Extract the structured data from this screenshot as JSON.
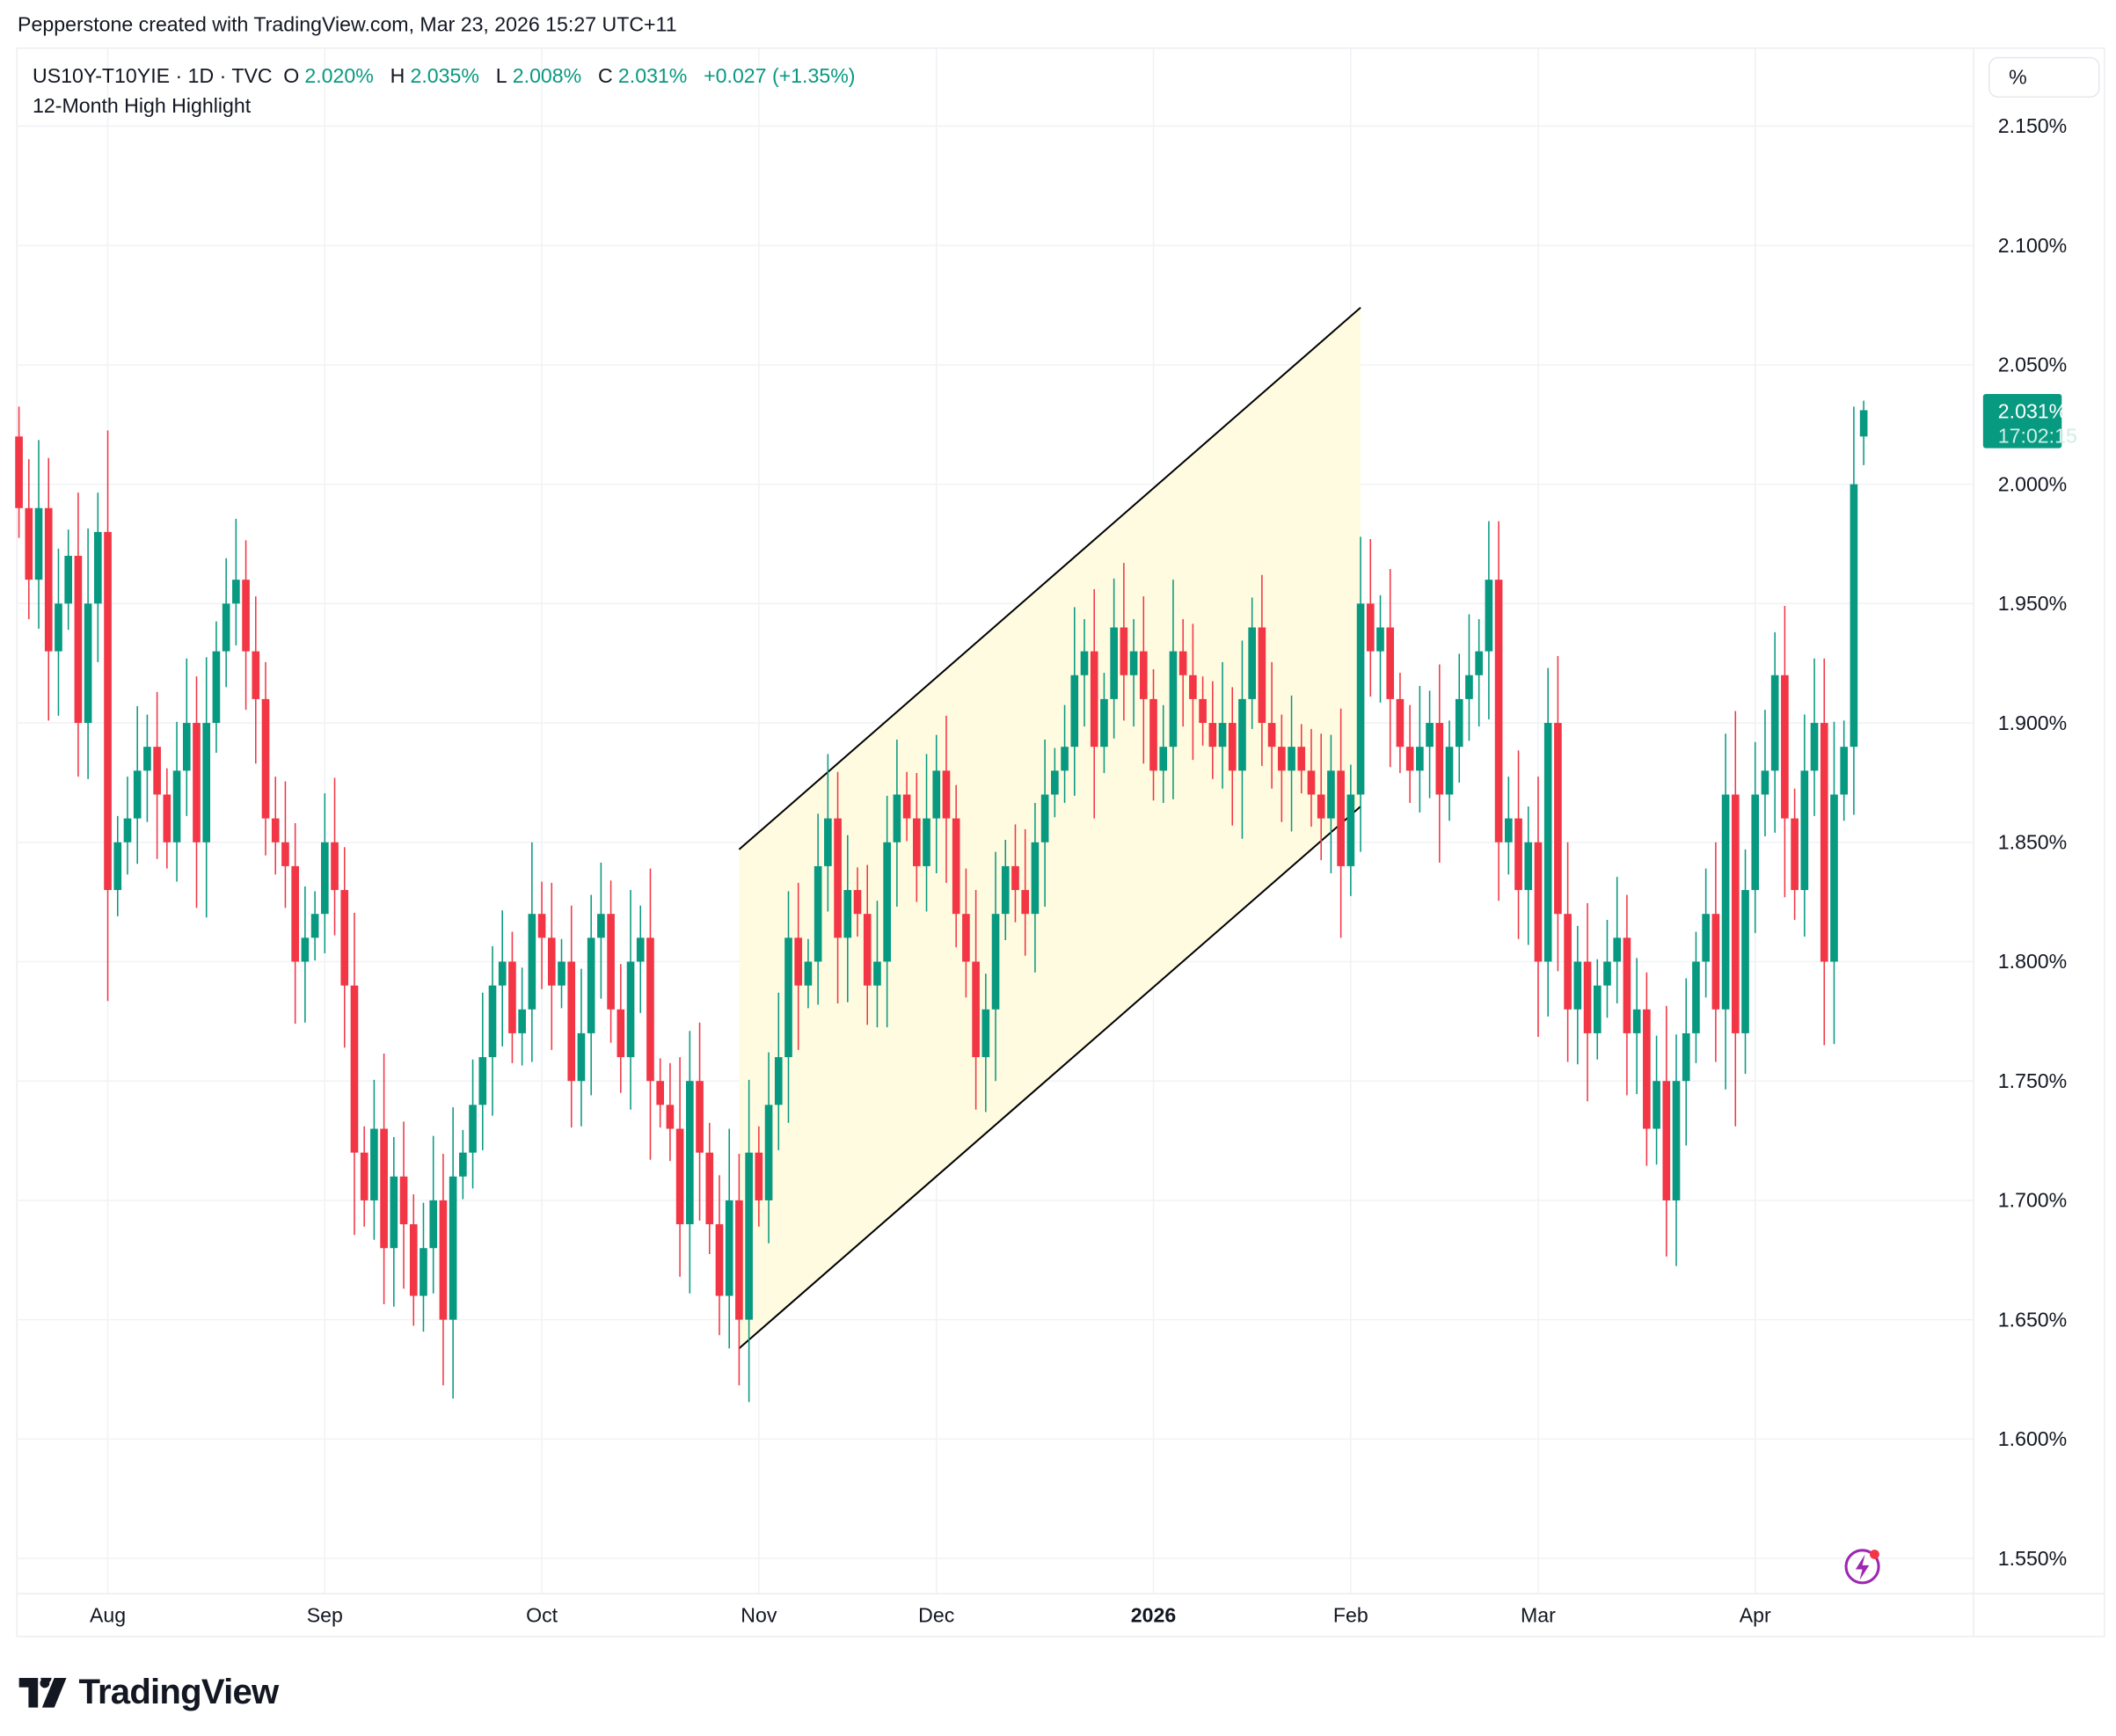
{
  "credit": "Pepperstone created with TradingView.com, Mar 23, 2026 15:27 UTC+11",
  "legend": {
    "symbol": "US10Y-T10YIE · 1D · TVC",
    "o_label": "O",
    "o": "2.020%",
    "h_label": "H",
    "h": "2.035%",
    "l_label": "L",
    "l": "2.008%",
    "c_label": "C",
    "c": "2.031%",
    "change": "+0.027 (+1.35%)",
    "indicator": "12-Month High Highlight"
  },
  "unit_button": "%",
  "last_price": {
    "value": "2.031%",
    "countdown": "17:02:15"
  },
  "logo": "TradingView",
  "colors": {
    "up": "#089981",
    "down": "#f23645",
    "channel_fill": "#fffbe0"
  },
  "chart_data": {
    "type": "candlestick",
    "title": "US10Y-T10YIE · 1D · TVC",
    "ylim": [
      1.525,
      2.175
    ],
    "y_ticks": [
      "2.150%",
      "2.100%",
      "2.050%",
      "2.000%",
      "1.950%",
      "1.900%",
      "1.850%",
      "1.800%",
      "1.750%",
      "1.700%",
      "1.650%",
      "1.600%",
      "1.550%"
    ],
    "y_tick_values": [
      2.15,
      2.1,
      2.05,
      2.0,
      1.95,
      1.9,
      1.85,
      1.8,
      1.75,
      1.7,
      1.65,
      1.6,
      1.55
    ],
    "x_ticks": [
      {
        "label": "Aug",
        "index": 9
      },
      {
        "label": "Sep",
        "index": 31
      },
      {
        "label": "Oct",
        "index": 53
      },
      {
        "label": "Nov",
        "index": 75
      },
      {
        "label": "Dec",
        "index": 93
      },
      {
        "label": "2026",
        "index": 115
      },
      {
        "label": "Feb",
        "index": 135
      },
      {
        "label": "Mar",
        "index": 154
      },
      {
        "label": "Apr",
        "index": 176
      }
    ],
    "first_open": 2.02,
    "closes": [
      1.99,
      1.96,
      1.99,
      1.93,
      1.95,
      1.97,
      1.9,
      1.95,
      1.98,
      1.83,
      1.85,
      1.86,
      1.88,
      1.89,
      1.87,
      1.85,
      1.88,
      1.9,
      1.85,
      1.9,
      1.93,
      1.95,
      1.96,
      1.93,
      1.91,
      1.86,
      1.85,
      1.84,
      1.8,
      1.81,
      1.82,
      1.85,
      1.83,
      1.79,
      1.72,
      1.7,
      1.73,
      1.68,
      1.71,
      1.69,
      1.66,
      1.68,
      1.7,
      1.65,
      1.71,
      1.72,
      1.74,
      1.76,
      1.79,
      1.8,
      1.77,
      1.78,
      1.82,
      1.81,
      1.79,
      1.8,
      1.75,
      1.77,
      1.81,
      1.82,
      1.78,
      1.76,
      1.8,
      1.81,
      1.75,
      1.74,
      1.73,
      1.69,
      1.75,
      1.72,
      1.69,
      1.66,
      1.7,
      1.65,
      1.72,
      1.7,
      1.74,
      1.76,
      1.81,
      1.79,
      1.8,
      1.84,
      1.86,
      1.81,
      1.83,
      1.82,
      1.79,
      1.8,
      1.85,
      1.87,
      1.86,
      1.84,
      1.86,
      1.88,
      1.86,
      1.82,
      1.8,
      1.76,
      1.78,
      1.82,
      1.84,
      1.83,
      1.82,
      1.85,
      1.87,
      1.88,
      1.89,
      1.92,
      1.93,
      1.89,
      1.91,
      1.94,
      1.92,
      1.93,
      1.91,
      1.88,
      1.89,
      1.93,
      1.92,
      1.91,
      1.9,
      1.89,
      1.9,
      1.88,
      1.91,
      1.94,
      1.9,
      1.89,
      1.88,
      1.89,
      1.88,
      1.87,
      1.86,
      1.88,
      1.84,
      1.87,
      1.95,
      1.93,
      1.94,
      1.91,
      1.89,
      1.88,
      1.89,
      1.9,
      1.87,
      1.89,
      1.91,
      1.92,
      1.93,
      1.96,
      1.85,
      1.86,
      1.83,
      1.85,
      1.8,
      1.9,
      1.82,
      1.78,
      1.8,
      1.77,
      1.79,
      1.8,
      1.81,
      1.77,
      1.78,
      1.73,
      1.75,
      1.7,
      1.75,
      1.77,
      1.8,
      1.82,
      1.78,
      1.87,
      1.77,
      1.83,
      1.87,
      1.88,
      1.92,
      1.86,
      1.83,
      1.88,
      1.9,
      1.8,
      1.87,
      1.89,
      2.0,
      2.031
    ],
    "last_candle": {
      "o": 2.02,
      "h": 2.035,
      "l": 2.008,
      "c": 2.031
    },
    "channel": {
      "upper": [
        [
          73,
          1.847
        ],
        [
          136,
          2.074
        ]
      ],
      "lower": [
        [
          73,
          1.638
        ],
        [
          136,
          1.865
        ]
      ]
    }
  }
}
